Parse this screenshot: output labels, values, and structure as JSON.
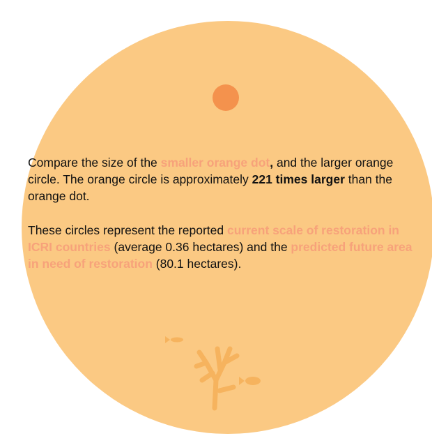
{
  "paragraphs": [
    [
      "Compare the size of the ",
      "smaller orange dot",
      ",",
      " and the larger orange circle. The orange circle is approximately ",
      "221 times larger",
      " than the orange dot."
    ],
    [
      "These circles represent the reported ",
      "current scale of restoration in ICRI countries",
      " (average 0.36 hectares) and the ",
      "predicted future area in need of restoration",
      " (80.1 hectares)."
    ]
  ]
}
